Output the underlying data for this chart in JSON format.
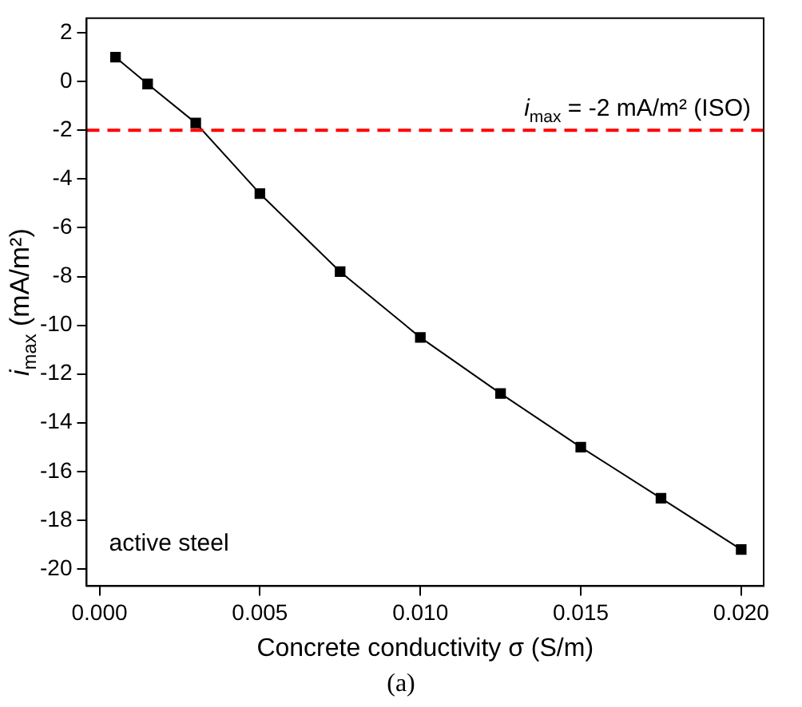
{
  "chart_data": {
    "type": "line",
    "xlabel": "Concrete conductivity σ (S/m)",
    "ylabel": "i$_{max}$ (mA/m²)",
    "x": [
      0.0005,
      0.0015,
      0.003,
      0.005,
      0.0075,
      0.01,
      0.0125,
      0.015,
      0.0175,
      0.02
    ],
    "series": [
      {
        "color": "#000000",
        "values": [
          1.0,
          -0.1,
          -1.7,
          -4.6,
          -7.8,
          -10.5,
          -12.8,
          -15.0,
          -17.1,
          -19.2
        ]
      }
    ],
    "xlim": [
      -0.0004,
      0.0207
    ],
    "xticks": [
      {
        "value": 0,
        "label": "0.000"
      },
      {
        "value": 0.005,
        "label": "0.005"
      },
      {
        "value": 0.01,
        "label": "0.010"
      },
      {
        "value": 0.015,
        "label": "0.015"
      },
      {
        "value": 0.02,
        "label": "0.020"
      }
    ],
    "ylim": [
      -20.7,
      2.6
    ],
    "yticks": [
      -20,
      -18,
      -16,
      -14,
      -12,
      -10,
      -8,
      -6,
      -4,
      -2,
      0,
      2
    ],
    "ref_lines": [
      {
        "axis": "y",
        "value": -2,
        "label": "i$_{max}$ = -2 mA/m² (ISO)",
        "color": "#ff0000",
        "line_style": "dashed"
      }
    ],
    "annotations": [
      "active steel",
      "(a)"
    ],
    "marker": "square",
    "line_style": "solid",
    "grid": false,
    "legend": false
  }
}
